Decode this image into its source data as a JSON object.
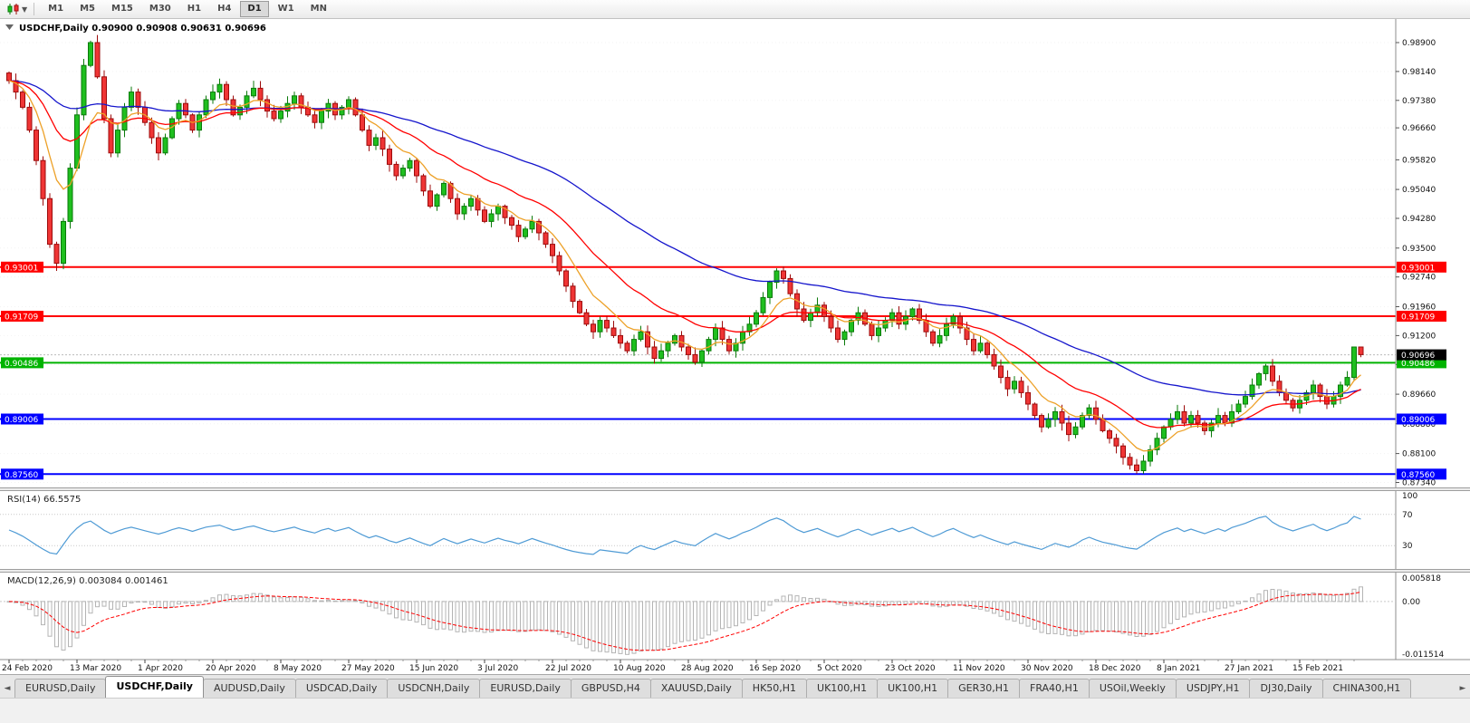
{
  "toolbar": {
    "timeframes": [
      "M1",
      "M5",
      "M15",
      "M30",
      "H1",
      "H4",
      "D1",
      "W1",
      "MN"
    ],
    "active_timeframe": "D1"
  },
  "chart": {
    "symbol_title": "USDCHF,Daily",
    "ohlc": {
      "open": "0.90900",
      "high": "0.90908",
      "low": "0.90631",
      "close": "0.90696"
    },
    "price_axis_labels": [
      "0.98900",
      "0.98140",
      "0.97380",
      "0.96660",
      "0.95820",
      "0.95040",
      "0.94280",
      "0.93500",
      "0.92740",
      "0.91960",
      "0.91200",
      "0.90440",
      "0.89660",
      "0.88880",
      "0.88100",
      "0.87340"
    ],
    "horizontal_lines": [
      {
        "price": 0.93001,
        "label": "0.93001",
        "color": "#ff0000"
      },
      {
        "price": 0.91709,
        "label": "0.91709",
        "color": "#ff0000"
      },
      {
        "price": 0.90486,
        "label": "0.90486",
        "color": "#00b300"
      },
      {
        "price": 0.89006,
        "label": "0.89006",
        "color": "#0000ff"
      },
      {
        "price": 0.8756,
        "label": "0.87560",
        "color": "#0000ff"
      }
    ],
    "current_price": {
      "price": 0.90696,
      "label": "0.90696",
      "box_color": "#000000"
    }
  },
  "rsi_panel": {
    "title": "RSI(14) 66.5575",
    "period": 14,
    "value": 66.5575,
    "axis_labels": [
      "100",
      "70",
      "30"
    ],
    "level_lines": [
      70,
      30
    ]
  },
  "macd_panel": {
    "title": "MACD(12,26,9) 0.003084 0.001461",
    "main": 0.003084,
    "signal": 0.001461,
    "axis_max_label": "0.005818",
    "axis_zero_label": "0.00",
    "axis_min_label": "-0.011514",
    "axis_max": 0.005818,
    "axis_min": -0.011514
  },
  "chart_data": {
    "type": "candlestick",
    "symbol": "USDCHF",
    "timeframe": "Daily",
    "price_range": [
      0.8734,
      0.989
    ],
    "dates": [
      "24 Feb 2020",
      "13 Mar 2020",
      "1 Apr 2020",
      "20 Apr 2020",
      "8 May 2020",
      "27 May 2020",
      "15 Jun 2020",
      "3 Jul 2020",
      "22 Jul 2020",
      "10 Aug 2020",
      "28 Aug 2020",
      "16 Sep 2020",
      "5 Oct 2020",
      "23 Oct 2020",
      "11 Nov 2020",
      "30 Nov 2020",
      "18 Dec 2020",
      "8 Jan 2021",
      "27 Jan 2021",
      "15 Feb 2021"
    ],
    "closes": [
      0.979,
      0.976,
      0.972,
      0.966,
      0.958,
      0.948,
      0.936,
      0.931,
      0.942,
      0.956,
      0.97,
      0.983,
      0.989,
      0.98,
      0.969,
      0.96,
      0.966,
      0.972,
      0.976,
      0.972,
      0.968,
      0.964,
      0.96,
      0.964,
      0.969,
      0.973,
      0.97,
      0.966,
      0.97,
      0.974,
      0.976,
      0.978,
      0.974,
      0.97,
      0.972,
      0.975,
      0.977,
      0.974,
      0.971,
      0.969,
      0.971,
      0.973,
      0.975,
      0.972,
      0.97,
      0.968,
      0.971,
      0.973,
      0.97,
      0.972,
      0.974,
      0.97,
      0.966,
      0.962,
      0.964,
      0.961,
      0.957,
      0.954,
      0.956,
      0.958,
      0.954,
      0.95,
      0.946,
      0.949,
      0.952,
      0.948,
      0.944,
      0.946,
      0.948,
      0.945,
      0.942,
      0.944,
      0.946,
      0.943,
      0.941,
      0.938,
      0.94,
      0.942,
      0.939,
      0.936,
      0.933,
      0.929,
      0.925,
      0.921,
      0.918,
      0.915,
      0.913,
      0.916,
      0.914,
      0.912,
      0.91,
      0.908,
      0.911,
      0.913,
      0.909,
      0.906,
      0.908,
      0.91,
      0.912,
      0.909,
      0.907,
      0.905,
      0.908,
      0.911,
      0.914,
      0.911,
      0.908,
      0.91,
      0.913,
      0.915,
      0.918,
      0.922,
      0.926,
      0.929,
      0.927,
      0.923,
      0.919,
      0.916,
      0.918,
      0.92,
      0.917,
      0.914,
      0.911,
      0.913,
      0.916,
      0.918,
      0.915,
      0.912,
      0.914,
      0.916,
      0.918,
      0.915,
      0.917,
      0.919,
      0.916,
      0.913,
      0.91,
      0.912,
      0.915,
      0.917,
      0.914,
      0.911,
      0.908,
      0.91,
      0.907,
      0.904,
      0.901,
      0.898,
      0.9,
      0.897,
      0.894,
      0.891,
      0.888,
      0.89,
      0.892,
      0.889,
      0.886,
      0.888,
      0.891,
      0.893,
      0.89,
      0.887,
      0.885,
      0.883,
      0.88,
      0.878,
      0.8765,
      0.879,
      0.882,
      0.885,
      0.888,
      0.89,
      0.892,
      0.889,
      0.891,
      0.889,
      0.887,
      0.889,
      0.891,
      0.889,
      0.892,
      0.894,
      0.896,
      0.899,
      0.902,
      0.904,
      0.9,
      0.897,
      0.895,
      0.893,
      0.895,
      0.897,
      0.899,
      0.896,
      0.894,
      0.896,
      0.899,
      0.901,
      0.909,
      0.907
    ],
    "wick_overrides": {
      "7": {
        "low": 0.929
      },
      "12": {
        "high": 0.9895
      },
      "113": {
        "high": 0.9297
      },
      "166": {
        "low": 0.8757
      },
      "198": {
        "high": 0.9091
      },
      "199": {
        "high": 0.9091,
        "low": 0.9063
      }
    },
    "indicators": {
      "moving_averages": [
        {
          "name": "fast",
          "period": 8,
          "color": "#eda128"
        },
        {
          "name": "medium",
          "period": 21,
          "color": "#ff0000"
        },
        {
          "name": "slow",
          "period": 55,
          "color": "#1515cc"
        }
      ],
      "rsi": {
        "period": 14
      },
      "macd": {
        "fast": 12,
        "slow": 26,
        "signal": 9
      }
    }
  },
  "tabs": {
    "scroll_left_icon": "◄",
    "scroll_right_icon": "►",
    "items": [
      {
        "label": "EURUSD,Daily",
        "active": false
      },
      {
        "label": "USDCHF,Daily",
        "active": true
      },
      {
        "label": "AUDUSD,Daily",
        "active": false
      },
      {
        "label": "USDCAD,Daily",
        "active": false
      },
      {
        "label": "USDCNH,Daily",
        "active": false
      },
      {
        "label": "EURUSD,Daily",
        "active": false
      },
      {
        "label": "GBPUSD,H4",
        "active": false
      },
      {
        "label": "XAUUSD,Daily",
        "active": false
      },
      {
        "label": "HK50,H1",
        "active": false
      },
      {
        "label": "UK100,H1",
        "active": false
      },
      {
        "label": "UK100,H1",
        "active": false
      },
      {
        "label": "GER30,H1",
        "active": false
      },
      {
        "label": "FRA40,H1",
        "active": false
      },
      {
        "label": "USOil,Weekly",
        "active": false
      },
      {
        "label": "USDJPY,H1",
        "active": false
      },
      {
        "label": "DJ30,Daily",
        "active": false
      },
      {
        "label": "CHINA300,H1",
        "active": false
      }
    ]
  },
  "colors": {
    "candle_up": "#1fbf1f",
    "candle_up_border": "#0a7a0a",
    "candle_down": "#ef3535",
    "candle_down_border": "#9c0b0b",
    "rsi_line": "#4f9bd5",
    "macd_bar": "#b4b4b4",
    "macd_signal": "#ff0000",
    "axis_text": "#111111"
  }
}
